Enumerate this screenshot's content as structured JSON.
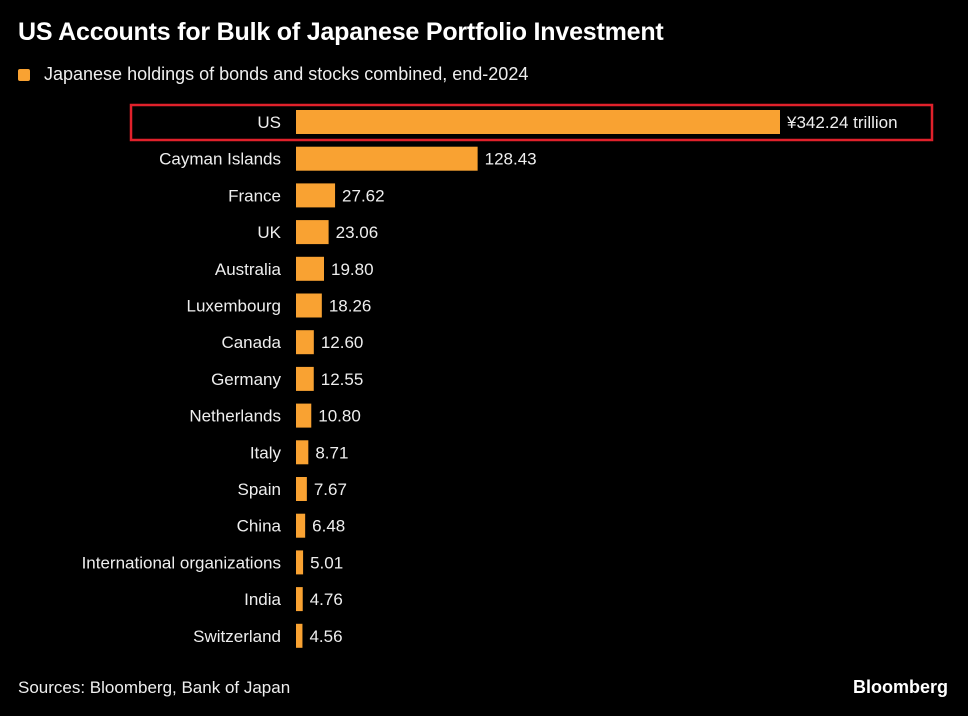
{
  "header": {
    "title": "US Accounts for Bulk of Japanese Portfolio Investment"
  },
  "footer": {
    "source": "Sources: Bloomberg, Bank of Japan",
    "brand": "Bloomberg"
  },
  "colors": {
    "bar": "#f9a232",
    "highlight_border": "#e0212b",
    "background": "#000000"
  },
  "chart_data": {
    "type": "bar",
    "orientation": "horizontal",
    "title": "US Accounts for Bulk of Japanese Portfolio Investment",
    "legend": {
      "placement": "top-left",
      "entries": [
        "Japanese holdings of bonds and stocks combined, end-2024"
      ]
    },
    "series": [
      {
        "name": "Japanese holdings of bonds and stocks combined, end-2024",
        "values": [
          342.24,
          128.43,
          27.62,
          23.06,
          19.8,
          18.26,
          12.6,
          12.55,
          10.8,
          8.71,
          7.67,
          6.48,
          5.01,
          4.76,
          4.56
        ]
      }
    ],
    "categories": [
      "US",
      "Cayman Islands",
      "France",
      "UK",
      "Australia",
      "Luxembourg",
      "Canada",
      "Germany",
      "Netherlands",
      "Italy",
      "Spain",
      "China",
      "International organizations",
      "India",
      "Switzerland"
    ],
    "value_labels": [
      "¥342.24 trillion",
      "128.43",
      "27.62",
      "23.06",
      "19.80",
      "18.26",
      "12.60",
      "12.55",
      "10.80",
      "8.71",
      "7.67",
      "6.48",
      "5.01",
      "4.76",
      "4.56"
    ],
    "unit": "¥ trillion",
    "highlighted": "US",
    "grid": false
  }
}
